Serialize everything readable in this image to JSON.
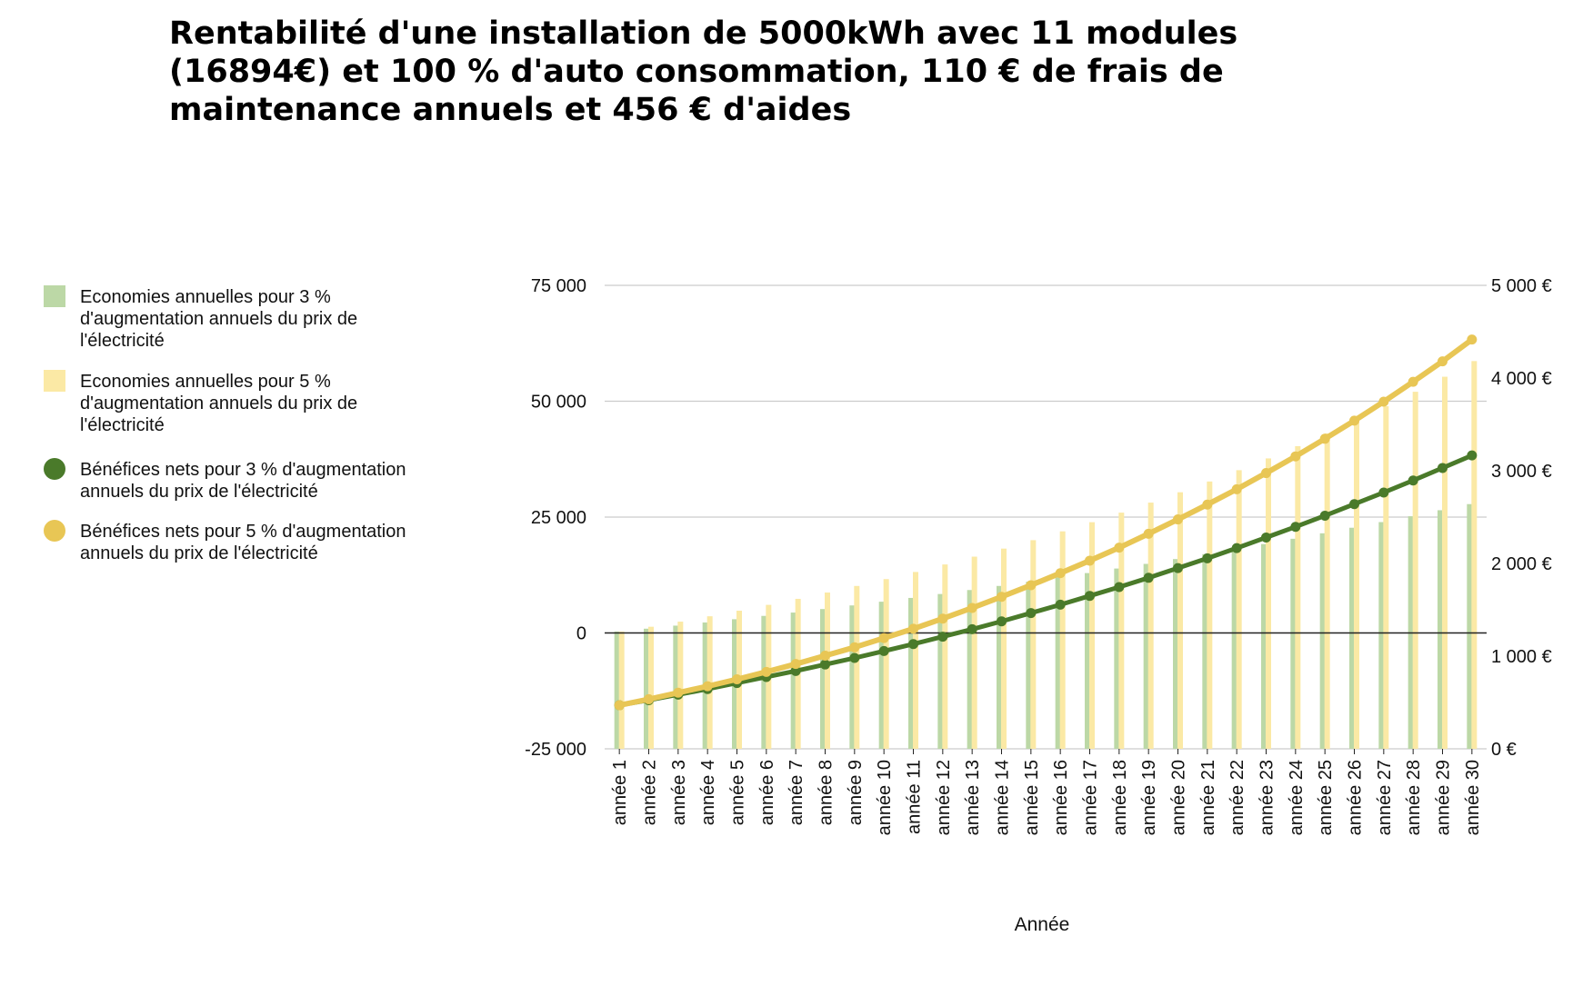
{
  "chart_data": {
    "type": "bar-line-combo",
    "title": "Rentabilité d'une installation de 5000kWh avec 11 modules (16894€) et 100 % d'auto consommation, 110 € de frais de maintenance annuels et 456 € d'aides",
    "xlabel": "Année",
    "categories": [
      "année 1",
      "année 2",
      "année 3",
      "année 4",
      "année 5",
      "année 6",
      "année 7",
      "année 8",
      "année 9",
      "année 10",
      "année 11",
      "année 12",
      "année 13",
      "année 14",
      "année 15",
      "année 16",
      "année 17",
      "année 18",
      "année 19",
      "année 20",
      "année 21",
      "année 22",
      "année 23",
      "année 24",
      "année 25",
      "année 26",
      "année 27",
      "année 28",
      "année 29",
      "année 30"
    ],
    "left_axis": {
      "ticks": [
        "75 000",
        "50 000",
        "25 000",
        "0",
        "-25 000"
      ],
      "ylim": [
        -25000,
        75000
      ]
    },
    "right_axis": {
      "ticks": [
        "5 000 €",
        "4 000 €",
        "3 000 €",
        "2 000 €",
        "1 000 €",
        "0 €"
      ],
      "ylim": [
        0,
        5000
      ]
    },
    "legend_position": "left",
    "grid": true,
    "series": [
      {
        "name": "Economies annuelles pour 3 % d'augmentation annuels du prix de l'électricité",
        "kind": "bar",
        "axis": "right",
        "color": "#bcd8a6",
        "values": [
          1265,
          1296,
          1329,
          1363,
          1398,
          1434,
          1470,
          1508,
          1547,
          1587,
          1628,
          1670,
          1713,
          1757,
          1802,
          1849,
          1896,
          1945,
          1995,
          2047,
          2100,
          2154,
          2209,
          2266,
          2325,
          2385,
          2446,
          2509,
          2574,
          2640
        ]
      },
      {
        "name": "Economies annuelles pour 5 % d'augmentation annuels du prix de l'électricité",
        "kind": "bar",
        "axis": "right",
        "color": "#fbe9a5",
        "values": [
          1265,
          1317,
          1372,
          1430,
          1490,
          1553,
          1618,
          1686,
          1757,
          1831,
          1908,
          1989,
          2073,
          2160,
          2251,
          2346,
          2445,
          2548,
          2656,
          2768,
          2884,
          3006,
          3133,
          3265,
          3403,
          3546,
          3696,
          3852,
          4014,
          4183
        ]
      },
      {
        "name": "Bénéfices nets pour 3 % d'augmentation annuels du prix de l'électricité",
        "kind": "line",
        "axis": "left",
        "color": "#4a7a2a",
        "values": [
          -15600,
          -14500,
          -13300,
          -12100,
          -10800,
          -9500,
          -8200,
          -6800,
          -5400,
          -3900,
          -2400,
          -800,
          800,
          2500,
          4300,
          6100,
          8000,
          9900,
          11900,
          14000,
          16100,
          18300,
          20600,
          22900,
          25300,
          27800,
          30300,
          32900,
          35600,
          38300
        ]
      },
      {
        "name": "Bénéfices nets pour 5 % d'augmentation annuels du prix de l'électricité",
        "kind": "line",
        "axis": "left",
        "color": "#e8c655",
        "values": [
          -15600,
          -14300,
          -12900,
          -11500,
          -10000,
          -8400,
          -6700,
          -4900,
          -3100,
          -1100,
          900,
          3100,
          5400,
          7800,
          10300,
          12900,
          15600,
          18400,
          21400,
          24500,
          27700,
          31000,
          34500,
          38100,
          41900,
          45800,
          49900,
          54200,
          58600,
          63300
        ]
      }
    ]
  }
}
